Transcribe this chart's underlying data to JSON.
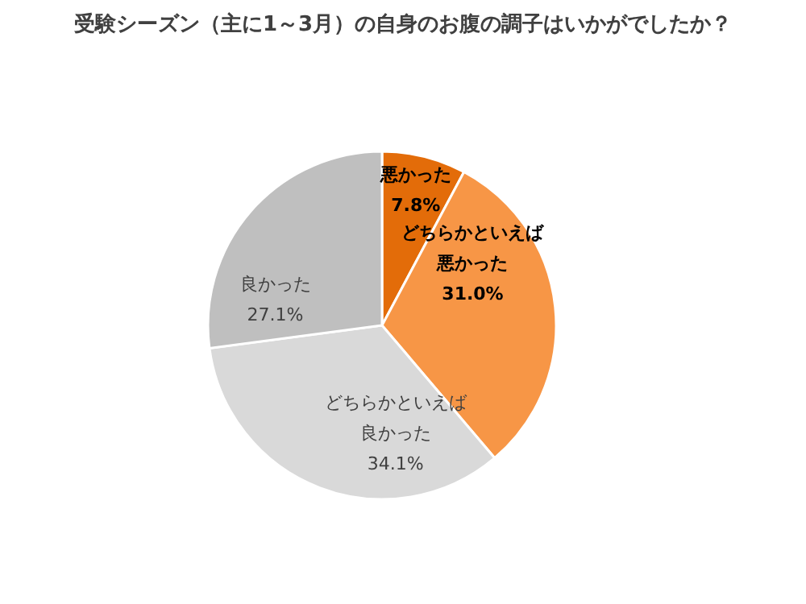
{
  "chart_data": {
    "type": "pie",
    "title": "受験シーズン（主に1～3月）の自身のお腹の調子はいかがでしたか？",
    "categories": [
      "悪かった",
      "どちらかといえば悪かった",
      "どちらかといえば良かった",
      "良かった"
    ],
    "values": [
      7.8,
      31.0,
      34.1,
      27.1
    ],
    "value_labels": [
      "7.8%",
      "31.0%",
      "34.1%",
      "27.1%"
    ],
    "colors": [
      "#e36c09",
      "#f79646",
      "#d9d9d9",
      "#bfbfbf"
    ],
    "legend": false
  }
}
